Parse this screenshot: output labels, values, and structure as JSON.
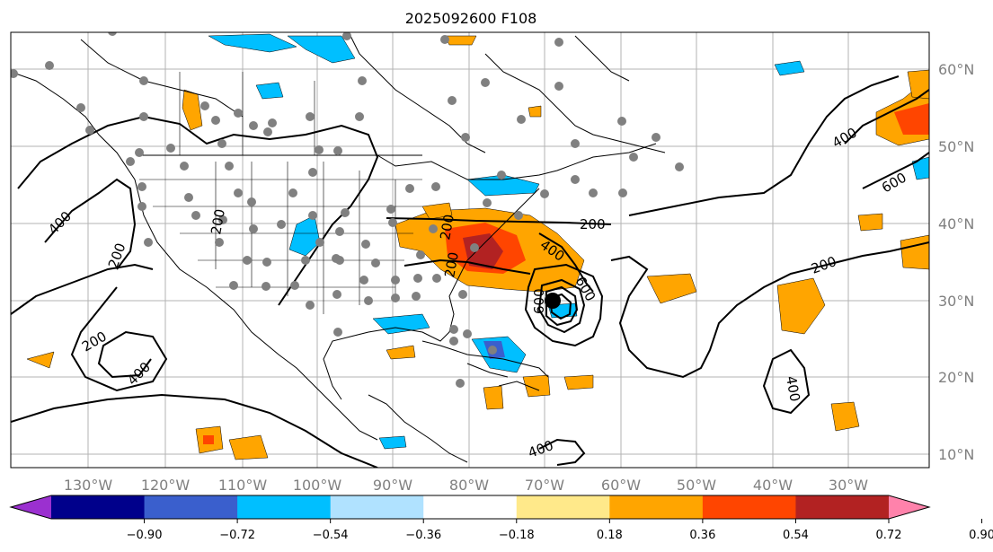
{
  "title": "2025092600 F108",
  "lon_labels": [
    "130°W",
    "120°W",
    "110°W",
    "100°W",
    "90°W",
    "80°W",
    "70°W",
    "60°W",
    "50°W",
    "40°W",
    "30°W"
  ],
  "lat_labels": [
    "60°N",
    "50°N",
    "40°N",
    "30°N",
    "20°N",
    "10°N"
  ],
  "contour_labels": [
    "400",
    "200",
    "200",
    "200",
    "400",
    "200",
    "400",
    "600",
    "600",
    "200",
    "400",
    "600",
    "400",
    "200",
    "400",
    "200"
  ],
  "colorbar": {
    "ticks": [
      "−0.90",
      "−0.72",
      "−0.54",
      "−0.36",
      "−0.18",
      "0.18",
      "0.36",
      "0.54",
      "0.72",
      "0.90"
    ],
    "colors": [
      "#9b30d0",
      "#00008b",
      "#3a5fcd",
      "#00bfff",
      "#b0e2ff",
      "#ffffff",
      "#ffe98a",
      "#ffa500",
      "#ff4500",
      "#b22222",
      "#ff82ab"
    ]
  },
  "colors": {
    "land_line": "#000000",
    "grid": "#b3b3b3",
    "station_dot": "#808080",
    "positive": "#ffa500",
    "positive_strong": "#ff4500",
    "positive_max": "#b22222",
    "negative": "#00bfff",
    "negative_strong": "#3a5fcd"
  }
}
